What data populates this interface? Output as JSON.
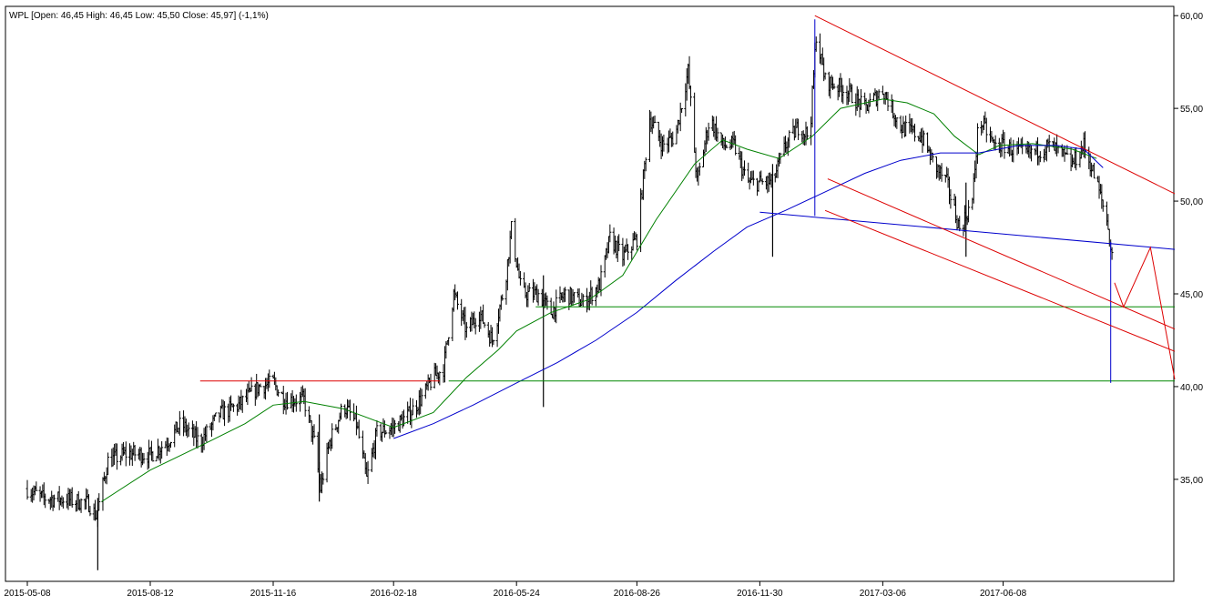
{
  "chart_data": {
    "type": "bar",
    "title": "WPL [Open: 46,45  High: 46,45  Low: 45,50  Close: 45,97] (-1,1%)",
    "symbol": "WPL",
    "x_ticks": [
      "2015-05-08",
      "2015-08-12",
      "2015-11-16",
      "2016-02-18",
      "2016-05-24",
      "2016-08-26",
      "2016-11-30",
      "2017-03-06",
      "2017-06-08"
    ],
    "y_ticks": [
      "35,00",
      "40,00",
      "45,00",
      "50,00",
      "55,00",
      "60,00"
    ],
    "y_range": [
      29.5,
      60.5
    ],
    "x_range": [
      "2015-05-08",
      "2017-10-20"
    ],
    "grid": false,
    "colors": {
      "price_bars": "#000000",
      "sma_short": "#008000",
      "sma_long": "#0000cc",
      "resistance": "#dd0000",
      "support": "#008800",
      "trendline": "#0000cc"
    },
    "price_keypoints": [
      [
        "2015-05-08",
        34.5
      ],
      [
        "2015-05-20",
        34.0
      ],
      [
        "2015-06-10",
        33.9
      ],
      [
        "2015-06-25",
        33.7
      ],
      [
        "2015-07-01",
        33.0
      ],
      [
        "2015-07-10",
        36.0
      ],
      [
        "2015-07-25",
        36.4
      ],
      [
        "2015-08-12",
        36.3
      ],
      [
        "2015-08-25",
        37.0
      ],
      [
        "2015-09-05",
        38.0
      ],
      [
        "2015-09-20",
        37.0
      ],
      [
        "2015-10-05",
        38.5
      ],
      [
        "2015-10-20",
        39.0
      ],
      [
        "2015-11-05",
        40.0
      ],
      [
        "2015-11-16",
        40.2
      ],
      [
        "2015-11-25",
        39.3
      ],
      [
        "2015-12-10",
        39.3
      ],
      [
        "2015-12-18",
        37.0
      ],
      [
        "2015-12-23",
        34.5
      ],
      [
        "2015-12-30",
        37.0
      ],
      [
        "2016-01-10",
        39.0
      ],
      [
        "2016-01-20",
        38.0
      ],
      [
        "2016-01-28",
        35.0
      ],
      [
        "2016-02-05",
        37.5
      ],
      [
        "2016-02-18",
        37.8
      ],
      [
        "2016-03-01",
        38.5
      ],
      [
        "2016-03-12",
        39.5
      ],
      [
        "2016-03-20",
        40.5
      ],
      [
        "2016-03-28",
        41.0
      ],
      [
        "2016-04-05",
        45.0
      ],
      [
        "2016-04-15",
        43.0
      ],
      [
        "2016-04-25",
        44.0
      ],
      [
        "2016-05-05",
        42.5
      ],
      [
        "2016-05-15",
        45.5
      ],
      [
        "2016-05-20",
        48.5
      ],
      [
        "2016-05-28",
        45.0
      ],
      [
        "2016-06-10",
        45.0
      ],
      [
        "2016-06-20",
        44.0
      ],
      [
        "2016-07-01",
        45.0
      ],
      [
        "2016-07-15",
        44.5
      ],
      [
        "2016-07-28",
        45.5
      ],
      [
        "2016-08-05",
        48.0
      ],
      [
        "2016-08-15",
        47.0
      ],
      [
        "2016-08-26",
        48.0
      ],
      [
        "2016-09-05",
        54.5
      ],
      [
        "2016-09-15",
        53.0
      ],
      [
        "2016-09-25",
        53.5
      ],
      [
        "2016-10-05",
        57.0
      ],
      [
        "2016-10-12",
        51.0
      ],
      [
        "2016-10-22",
        54.5
      ],
      [
        "2016-11-01",
        53.0
      ],
      [
        "2016-11-10",
        53.0
      ],
      [
        "2016-11-20",
        51.0
      ],
      [
        "2016-11-30",
        51.0
      ],
      [
        "2016-12-10",
        51.0
      ],
      [
        "2016-12-20",
        53.0
      ],
      [
        "2016-12-30",
        54.0
      ],
      [
        "2017-01-08",
        53.5
      ],
      [
        "2017-01-13",
        59.0
      ],
      [
        "2017-01-20",
        56.5
      ],
      [
        "2017-02-05",
        56.0
      ],
      [
        "2017-02-20",
        55.0
      ],
      [
        "2017-03-06",
        56.0
      ],
      [
        "2017-03-20",
        54.0
      ],
      [
        "2017-04-05",
        53.5
      ],
      [
        "2017-04-15",
        52.0
      ],
      [
        "2017-04-25",
        51.0
      ],
      [
        "2017-05-05",
        48.5
      ],
      [
        "2017-05-15",
        50.0
      ],
      [
        "2017-05-20",
        54.5
      ],
      [
        "2017-06-01",
        53.0
      ],
      [
        "2017-06-08",
        53.0
      ],
      [
        "2017-06-25",
        52.5
      ],
      [
        "2017-07-15",
        53.0
      ],
      [
        "2017-08-01",
        52.0
      ],
      [
        "2017-08-10",
        53.0
      ],
      [
        "2017-08-20",
        51.0
      ],
      [
        "2017-08-28",
        49.0
      ],
      [
        "2017-09-03",
        46.0
      ]
    ],
    "sma_short_points": [
      [
        "2015-07-05",
        33.8
      ],
      [
        "2015-08-12",
        35.5
      ],
      [
        "2015-09-20",
        36.8
      ],
      [
        "2015-10-25",
        38.0
      ],
      [
        "2015-11-16",
        39.0
      ],
      [
        "2015-12-10",
        39.2
      ],
      [
        "2016-01-10",
        38.8
      ],
      [
        "2016-02-18",
        37.8
      ],
      [
        "2016-03-20",
        38.6
      ],
      [
        "2016-04-15",
        40.5
      ],
      [
        "2016-05-10",
        42.0
      ],
      [
        "2016-05-24",
        43.0
      ],
      [
        "2016-06-20",
        44.0
      ],
      [
        "2016-07-20",
        44.7
      ],
      [
        "2016-08-15",
        46.0
      ],
      [
        "2016-09-10",
        49.0
      ],
      [
        "2016-10-10",
        52.0
      ],
      [
        "2016-11-01",
        53.3
      ],
      [
        "2016-11-20",
        52.8
      ],
      [
        "2016-12-15",
        52.3
      ],
      [
        "2017-01-10",
        53.5
      ],
      [
        "2017-02-01",
        55.0
      ],
      [
        "2017-03-06",
        55.5
      ],
      [
        "2017-03-25",
        55.3
      ],
      [
        "2017-04-15",
        54.7
      ],
      [
        "2017-05-01",
        53.5
      ],
      [
        "2017-05-20",
        52.5
      ],
      [
        "2017-06-05",
        53.0
      ],
      [
        "2017-07-01",
        53.1
      ],
      [
        "2017-08-01",
        52.8
      ],
      [
        "2017-08-20",
        52.3
      ]
    ],
    "sma_long_points": [
      [
        "2016-02-18",
        37.2
      ],
      [
        "2016-03-20",
        38.0
      ],
      [
        "2016-04-20",
        39.0
      ],
      [
        "2016-05-24",
        40.2
      ],
      [
        "2016-06-25",
        41.3
      ],
      [
        "2016-07-25",
        42.5
      ],
      [
        "2016-08-26",
        44.0
      ],
      [
        "2016-09-25",
        45.7
      ],
      [
        "2016-10-25",
        47.3
      ],
      [
        "2016-11-20",
        48.6
      ],
      [
        "2016-12-20",
        49.5
      ],
      [
        "2017-01-20",
        50.5
      ],
      [
        "2017-02-20",
        51.5
      ],
      [
        "2017-03-20",
        52.2
      ],
      [
        "2017-04-20",
        52.6
      ],
      [
        "2017-05-20",
        52.6
      ],
      [
        "2017-06-20",
        53.0
      ],
      [
        "2017-07-20",
        53.0
      ],
      [
        "2017-08-10",
        52.8
      ],
      [
        "2017-08-25",
        51.8
      ]
    ],
    "spikes": [
      {
        "date": "2015-07-02",
        "high": 34.0,
        "low": 30.1
      },
      {
        "date": "2015-12-22",
        "high": 38.5,
        "low": 33.8
      },
      {
        "date": "2016-06-14",
        "high": 46.0,
        "low": 38.9
      },
      {
        "date": "2016-12-10",
        "high": 52.0,
        "low": 47.0
      },
      {
        "date": "2017-05-10",
        "high": 51.0,
        "low": 47.0
      }
    ],
    "lines": [
      {
        "kind": "resistance",
        "points": [
          [
            "2015-09-20",
            40.3
          ],
          [
            "2016-03-25",
            40.3
          ]
        ]
      },
      {
        "kind": "support",
        "points": [
          [
            "2016-06-08",
            44.3
          ],
          [
            "2017-10-20",
            44.3
          ]
        ]
      },
      {
        "kind": "support",
        "points": [
          [
            "2016-04-01",
            40.3
          ],
          [
            "2017-10-20",
            40.3
          ]
        ]
      },
      {
        "kind": "trendline",
        "points": [
          [
            "2016-11-30",
            49.4
          ],
          [
            "2017-10-20",
            47.4
          ]
        ]
      },
      {
        "kind": "trendline",
        "points": [
          [
            "2017-01-12",
            59.8
          ],
          [
            "2017-01-12",
            49.2
          ]
        ]
      },
      {
        "kind": "trendline",
        "points": [
          [
            "2017-08-31",
            47.8
          ],
          [
            "2017-08-31",
            40.2
          ]
        ]
      },
      {
        "kind": "resistance",
        "points": [
          [
            "2017-01-12",
            60.0
          ],
          [
            "2017-10-20",
            50.4
          ]
        ]
      },
      {
        "kind": "resistance",
        "points": [
          [
            "2017-01-22",
            51.2
          ],
          [
            "2017-10-20",
            43.1
          ]
        ]
      },
      {
        "kind": "resistance",
        "points": [
          [
            "2017-01-20",
            49.5
          ],
          [
            "2017-10-20",
            41.9
          ]
        ]
      },
      {
        "kind": "resistance",
        "points": [
          [
            "2017-09-03",
            45.6
          ],
          [
            "2017-09-10",
            44.3
          ],
          [
            "2017-10-01",
            47.5
          ],
          [
            "2017-10-20",
            40.4
          ]
        ]
      }
    ]
  }
}
